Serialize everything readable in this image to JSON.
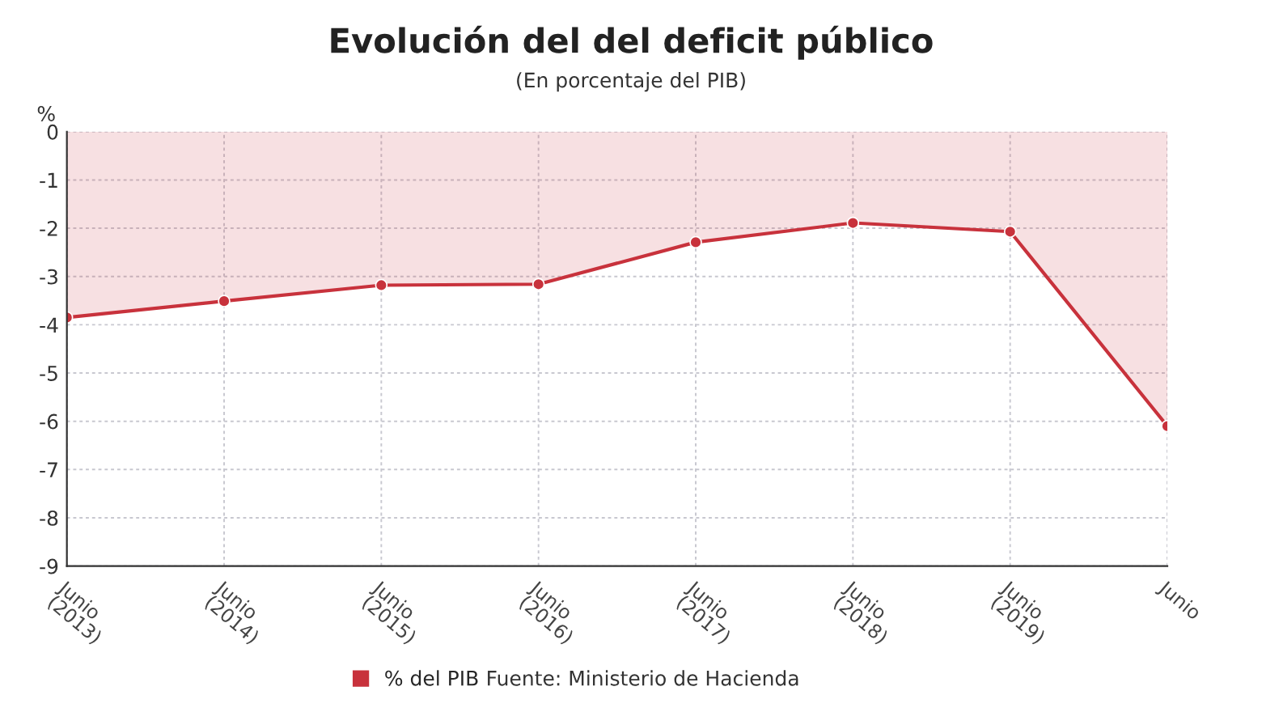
{
  "chart_data": {
    "type": "area",
    "title": "Evolución del del deficit público",
    "subtitle": "(En porcentaje del PIB)",
    "ylabel": "%",
    "categories": [
      "Junio\n(2013)",
      "Junio\n(2014)",
      "Junio\n(2015)",
      "Junio\n(2016)",
      "Junio\n(2017)",
      "Junio\n(2018)",
      "Junio\n(2019)",
      "Junio"
    ],
    "series": [
      {
        "name": "% del PIB",
        "color": "#c8323c",
        "values": [
          -3.85,
          -3.51,
          -3.18,
          -3.16,
          -2.29,
          -1.89,
          -2.07,
          -6.1
        ]
      }
    ],
    "ylim": [
      -9,
      0
    ],
    "yticks": [
      -9,
      -8,
      -7,
      -6,
      -5,
      -4,
      -3,
      -2,
      -1,
      0
    ],
    "grid": true,
    "legend": "bottom",
    "marker": "circle",
    "line_style": "solid",
    "annotations": [
      "Fuente: Ministerio de Hacienda"
    ]
  }
}
